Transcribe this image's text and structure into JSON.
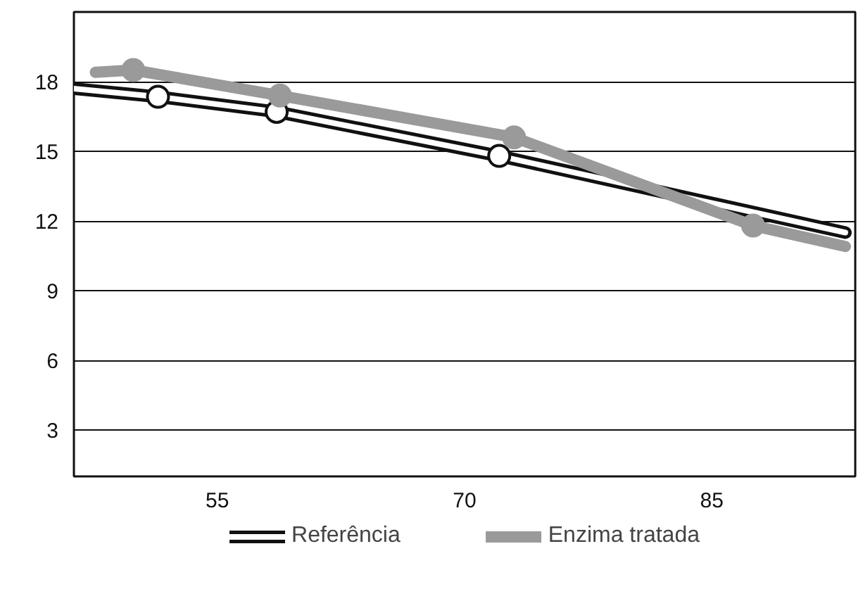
{
  "chart_data": {
    "type": "line",
    "xlim": [
      46.3,
      93.7
    ],
    "xticks": [
      55,
      70,
      85
    ],
    "ylim": [
      1,
      21
    ],
    "yticks": [
      3,
      6,
      9,
      12,
      15,
      18
    ],
    "grid": "y",
    "legend": "bottom",
    "marker": "circle",
    "series": [
      {
        "name": "Referência",
        "color": "#ffffff",
        "x": [
          46.3,
          51.4,
          58.6,
          72.1,
          93.1
        ],
        "values": [
          17.7,
          17.35,
          16.7,
          14.8,
          11.5
        ]
      },
      {
        "name": "Enzima tratada",
        "color": "#9a9a9a",
        "x": [
          47.6,
          49.9,
          58.8,
          73.0,
          87.5,
          93.1
        ],
        "values": [
          18.4,
          18.5,
          17.4,
          15.6,
          11.8,
          10.9
        ]
      }
    ]
  }
}
